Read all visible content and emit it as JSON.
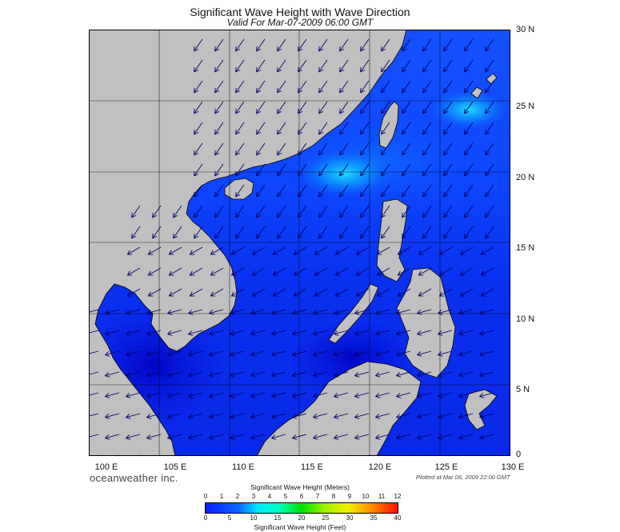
{
  "title": "Significant Wave Height with Wave Direction",
  "subtitle": "Valid For Mar-07-2009 06:00 GMT",
  "lat_ticks": [
    "30 N",
    "25 N",
    "20 N",
    "15 N",
    "10 N",
    "5 N",
    "0"
  ],
  "lon_ticks": [
    "100 E",
    "105 E",
    "110 E",
    "115 E",
    "120 E",
    "125 E",
    "130 E"
  ],
  "brand": "oceanweather inc.",
  "plotted": "Plotted at Mar 06, 2009 22:00 GMT",
  "colorbar": {
    "title_meters": "Significant Wave Height (Meters)",
    "title_feet": "Significant Wave Height (Feet)",
    "meters": [
      "0",
      "1",
      "2",
      "3",
      "4",
      "5",
      "6",
      "7",
      "8",
      "9",
      "10",
      "11",
      "12"
    ],
    "feet": [
      "0",
      "5",
      "10",
      "15",
      "20",
      "25",
      "30",
      "35",
      "40"
    ]
  },
  "colors": {
    "land": "#c0c0c0",
    "deep_blue": "#0a1cff",
    "cyan_peak": "#00f0ff",
    "arrow": "#000066"
  }
}
